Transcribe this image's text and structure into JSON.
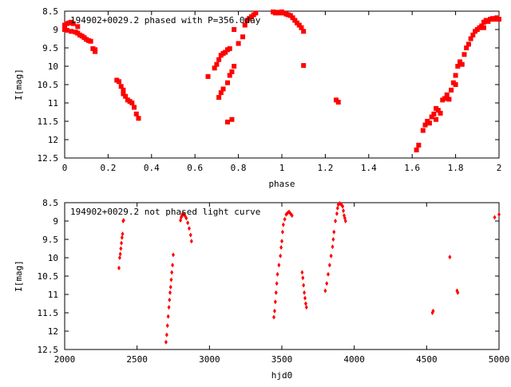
{
  "colors": {
    "points": "#ff0000",
    "axis": "#000000",
    "background": "#ffffff"
  },
  "chart_data": [
    {
      "type": "scatter",
      "title": "194902+0029.2 phased with P=356.0day",
      "xlabel": "phase",
      "ylabel": "I[mag]",
      "xlim": [
        0,
        2
      ],
      "ylim": [
        12.5,
        8.5
      ],
      "y_inverted": true,
      "xticks": [
        0,
        0.2,
        0.4,
        0.6,
        0.8,
        1,
        1.2,
        1.4,
        1.6,
        1.8,
        2
      ],
      "xtick_labels": [
        "0",
        "0.2",
        "0.4",
        "0.6",
        "0.8",
        "1",
        "1.2",
        "1.4",
        "1.6",
        "1.8",
        "2"
      ],
      "yticks": [
        8.5,
        9,
        9.5,
        10,
        10.5,
        11,
        11.5,
        12,
        12.5
      ],
      "ytick_labels": [
        "8.5",
        "9",
        "9.5",
        "10",
        "10.5",
        "11",
        "11.5",
        "12",
        "12.5"
      ],
      "marker": "square",
      "series": [
        {
          "points": [
            [
              0.0,
              8.88
            ],
            [
              0.01,
              8.84
            ],
            [
              0.02,
              8.82
            ],
            [
              0.03,
              8.8
            ],
            [
              0.04,
              8.84
            ],
            [
              0.06,
              8.92
            ],
            [
              0.0,
              9.0
            ],
            [
              0.01,
              9.02
            ],
            [
              0.03,
              9.05
            ],
            [
              0.05,
              9.07
            ],
            [
              0.06,
              9.1
            ],
            [
              0.07,
              9.15
            ],
            [
              0.08,
              9.18
            ],
            [
              0.09,
              9.22
            ],
            [
              0.1,
              9.27
            ],
            [
              0.11,
              9.3
            ],
            [
              0.12,
              9.32
            ],
            [
              0.13,
              9.52
            ],
            [
              0.14,
              9.55
            ],
            [
              0.14,
              9.6
            ],
            [
              0.24,
              10.38
            ],
            [
              0.25,
              10.42
            ],
            [
              0.26,
              10.55
            ],
            [
              0.27,
              10.65
            ],
            [
              0.27,
              10.75
            ],
            [
              0.28,
              10.82
            ],
            [
              0.29,
              10.92
            ],
            [
              0.3,
              10.96
            ],
            [
              0.31,
              11.0
            ],
            [
              0.32,
              11.12
            ],
            [
              0.33,
              11.3
            ],
            [
              0.34,
              11.42
            ],
            [
              0.66,
              10.28
            ],
            [
              0.69,
              10.05
            ],
            [
              0.7,
              9.95
            ],
            [
              0.71,
              9.82
            ],
            [
              0.72,
              9.7
            ],
            [
              0.73,
              9.65
            ],
            [
              0.74,
              9.62
            ],
            [
              0.75,
              9.55
            ],
            [
              0.76,
              9.52
            ],
            [
              0.71,
              10.85
            ],
            [
              0.72,
              10.72
            ],
            [
              0.73,
              10.62
            ],
            [
              0.75,
              10.45
            ],
            [
              0.76,
              10.25
            ],
            [
              0.77,
              10.15
            ],
            [
              0.78,
              10.0
            ],
            [
              0.75,
              11.52
            ],
            [
              0.77,
              11.45
            ],
            [
              0.78,
              9.0
            ],
            [
              0.8,
              9.38
            ],
            [
              0.82,
              9.2
            ],
            [
              0.83,
              8.88
            ],
            [
              0.84,
              8.75
            ],
            [
              0.85,
              8.7
            ],
            [
              0.86,
              8.65
            ],
            [
              0.87,
              8.6
            ],
            [
              0.88,
              8.55
            ],
            [
              0.96,
              8.52
            ],
            [
              0.97,
              8.55
            ],
            [
              0.98,
              8.53
            ],
            [
              0.99,
              8.55
            ],
            [
              1.0,
              8.52
            ],
            [
              1.01,
              8.55
            ],
            [
              1.02,
              8.58
            ],
            [
              1.03,
              8.6
            ],
            [
              1.04,
              8.62
            ],
            [
              1.05,
              8.68
            ],
            [
              1.06,
              8.75
            ],
            [
              1.07,
              8.82
            ],
            [
              1.08,
              8.88
            ],
            [
              1.09,
              8.95
            ],
            [
              1.1,
              9.05
            ],
            [
              1.1,
              9.98
            ],
            [
              1.25,
              10.92
            ],
            [
              1.26,
              10.98
            ],
            [
              1.62,
              12.28
            ],
            [
              1.63,
              12.15
            ],
            [
              1.65,
              11.75
            ],
            [
              1.66,
              11.6
            ],
            [
              1.67,
              11.5
            ],
            [
              1.68,
              11.55
            ],
            [
              1.69,
              11.38
            ],
            [
              1.7,
              11.3
            ],
            [
              1.71,
              11.15
            ],
            [
              1.72,
              11.2
            ],
            [
              1.71,
              11.45
            ],
            [
              1.73,
              11.28
            ],
            [
              1.74,
              10.92
            ],
            [
              1.75,
              10.88
            ],
            [
              1.76,
              10.78
            ],
            [
              1.77,
              10.9
            ],
            [
              1.78,
              10.65
            ],
            [
              1.79,
              10.45
            ],
            [
              1.8,
              10.5
            ],
            [
              1.8,
              10.25
            ],
            [
              1.81,
              10.0
            ],
            [
              1.82,
              9.88
            ],
            [
              1.83,
              9.95
            ],
            [
              1.84,
              9.68
            ],
            [
              1.85,
              9.5
            ],
            [
              1.86,
              9.4
            ],
            [
              1.87,
              9.25
            ],
            [
              1.88,
              9.15
            ],
            [
              1.89,
              9.05
            ],
            [
              1.9,
              9.0
            ],
            [
              1.91,
              8.95
            ],
            [
              1.92,
              8.9
            ],
            [
              1.93,
              8.95
            ],
            [
              1.93,
              8.8
            ],
            [
              1.94,
              8.75
            ],
            [
              1.95,
              8.78
            ],
            [
              1.96,
              8.72
            ],
            [
              1.97,
              8.7
            ],
            [
              1.98,
              8.72
            ],
            [
              1.99,
              8.68
            ],
            [
              2.0,
              8.72
            ]
          ]
        }
      ]
    },
    {
      "type": "scatter",
      "title": "194902+0029.2 not phased light curve",
      "xlabel": "hjd0",
      "ylabel": "I[mag]",
      "xlim": [
        2000,
        5000
      ],
      "ylim": [
        12.5,
        8.5
      ],
      "y_inverted": true,
      "xticks": [
        2000,
        2500,
        3000,
        3500,
        4000,
        4500,
        5000
      ],
      "xtick_labels": [
        "2000",
        "2500",
        "3000",
        "3500",
        "4000",
        "4500",
        "5000"
      ],
      "yticks": [
        8.5,
        9,
        9.5,
        10,
        10.5,
        11,
        11.5,
        12,
        12.5
      ],
      "ytick_labels": [
        "8.5",
        "9",
        "9.5",
        "10",
        "10.5",
        "11",
        "11.5",
        "12",
        "12.5"
      ],
      "marker": "diamond",
      "series": [
        {
          "points": [
            [
              2375,
              10.28
            ],
            [
              2380,
              10.0
            ],
            [
              2384,
              9.9
            ],
            [
              2388,
              9.75
            ],
            [
              2392,
              9.6
            ],
            [
              2396,
              9.45
            ],
            [
              2400,
              9.35
            ],
            [
              2404,
              9.0
            ],
            [
              2407,
              8.98
            ],
            [
              2700,
              12.3
            ],
            [
              2705,
              12.1
            ],
            [
              2710,
              11.85
            ],
            [
              2715,
              11.6
            ],
            [
              2720,
              11.35
            ],
            [
              2724,
              11.15
            ],
            [
              2728,
              10.95
            ],
            [
              2732,
              10.8
            ],
            [
              2736,
              10.6
            ],
            [
              2740,
              10.4
            ],
            [
              2745,
              10.2
            ],
            [
              2750,
              9.92
            ],
            [
              2800,
              8.98
            ],
            [
              2805,
              8.9
            ],
            [
              2810,
              8.85
            ],
            [
              2815,
              8.8
            ],
            [
              2820,
              8.82
            ],
            [
              2830,
              8.85
            ],
            [
              2840,
              8.92
            ],
            [
              2850,
              9.05
            ],
            [
              2860,
              9.2
            ],
            [
              2870,
              9.38
            ],
            [
              2876,
              9.55
            ],
            [
              3445,
              11.62
            ],
            [
              3450,
              11.45
            ],
            [
              3455,
              11.2
            ],
            [
              3460,
              10.95
            ],
            [
              3465,
              10.7
            ],
            [
              3470,
              10.45
            ],
            [
              3480,
              10.2
            ],
            [
              3490,
              9.95
            ],
            [
              3495,
              9.72
            ],
            [
              3500,
              9.55
            ],
            [
              3505,
              9.3
            ],
            [
              3510,
              9.1
            ],
            [
              3520,
              8.95
            ],
            [
              3530,
              8.82
            ],
            [
              3540,
              8.78
            ],
            [
              3550,
              8.75
            ],
            [
              3560,
              8.8
            ],
            [
              3570,
              8.85
            ],
            [
              3640,
              10.4
            ],
            [
              3645,
              10.55
            ],
            [
              3650,
              10.75
            ],
            [
              3655,
              10.95
            ],
            [
              3660,
              11.1
            ],
            [
              3665,
              11.25
            ],
            [
              3670,
              11.35
            ],
            [
              3800,
              10.9
            ],
            [
              3810,
              10.7
            ],
            [
              3820,
              10.45
            ],
            [
              3830,
              10.2
            ],
            [
              3840,
              9.95
            ],
            [
              3850,
              9.7
            ],
            [
              3855,
              9.5
            ],
            [
              3860,
              9.3
            ],
            [
              3870,
              9.0
            ],
            [
              3880,
              8.8
            ],
            [
              3885,
              8.65
            ],
            [
              3890,
              8.55
            ],
            [
              3900,
              8.52
            ],
            [
              3910,
              8.55
            ],
            [
              3920,
              8.6
            ],
            [
              3925,
              8.72
            ],
            [
              3930,
              8.85
            ],
            [
              3935,
              8.92
            ],
            [
              3940,
              9.0
            ],
            [
              4540,
              11.5
            ],
            [
              4545,
              11.45
            ],
            [
              4660,
              9.98
            ],
            [
              4710,
              10.9
            ],
            [
              4715,
              10.95
            ],
            [
              4970,
              8.9
            ],
            [
              5000,
              8.82
            ]
          ]
        }
      ]
    }
  ]
}
